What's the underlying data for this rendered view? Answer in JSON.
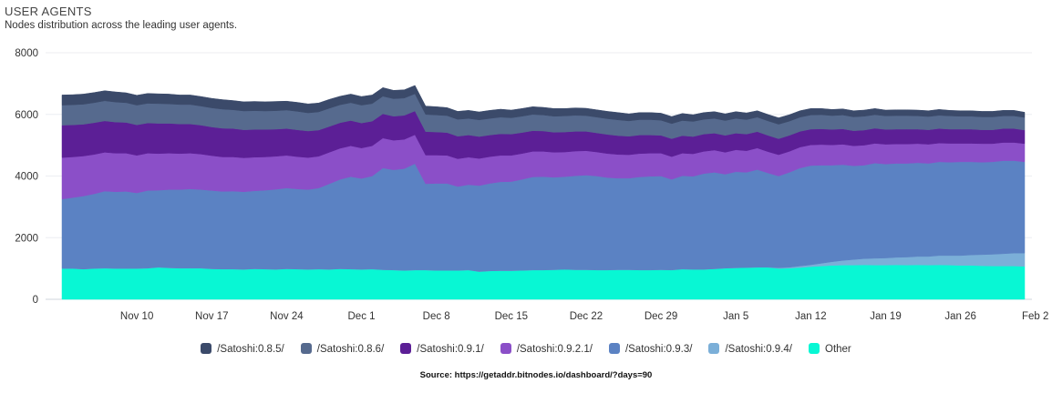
{
  "header": {
    "title": "USER AGENTS",
    "subtitle": "Nodes distribution across the leading user agents."
  },
  "source": "Source: https://getaddr.bitnodes.io/dashboard/?days=90",
  "chart_data": {
    "type": "area",
    "stacked": true,
    "title": "USER AGENTS",
    "subtitle": "Nodes distribution across the leading user agents.",
    "xlabel": "",
    "ylabel": "",
    "ylim": [
      0,
      8000
    ],
    "yticks": [
      0,
      2000,
      4000,
      6000,
      8000
    ],
    "x_start_day": 0,
    "x_end_day": 90,
    "x_tick_labels": [
      {
        "day": 7,
        "label": "Nov 10"
      },
      {
        "day": 14,
        "label": "Nov 17"
      },
      {
        "day": 21,
        "label": "Nov 24"
      },
      {
        "day": 28,
        "label": "Dec 1"
      },
      {
        "day": 35,
        "label": "Dec 8"
      },
      {
        "day": 42,
        "label": "Dec 15"
      },
      {
        "day": 49,
        "label": "Dec 22"
      },
      {
        "day": 56,
        "label": "Dec 29"
      },
      {
        "day": 63,
        "label": "Jan 5"
      },
      {
        "day": 70,
        "label": "Jan 12"
      },
      {
        "day": 77,
        "label": "Jan 19"
      },
      {
        "day": 84,
        "label": "Jan 26"
      },
      {
        "day": 91,
        "label": "Feb 2"
      }
    ],
    "x": [
      0,
      1,
      2,
      3,
      4,
      5,
      6,
      7,
      8,
      9,
      10,
      11,
      12,
      13,
      14,
      15,
      16,
      17,
      18,
      19,
      20,
      21,
      22,
      23,
      24,
      25,
      26,
      27,
      28,
      29,
      30,
      31,
      32,
      33,
      34,
      35,
      36,
      37,
      38,
      39,
      40,
      41,
      42,
      43,
      44,
      45,
      46,
      47,
      48,
      49,
      50,
      51,
      52,
      53,
      54,
      55,
      56,
      57,
      58,
      59,
      60,
      61,
      62,
      63,
      64,
      65,
      66,
      67,
      68,
      69,
      70,
      71,
      72,
      73,
      74,
      75,
      76,
      77,
      78,
      79,
      80,
      81,
      82,
      83,
      84,
      85,
      86,
      87,
      88,
      89,
      90
    ],
    "legend_position": "bottom",
    "series": [
      {
        "name": "Other",
        "color": "#08f7d4",
        "values": [
          1000,
          1000,
          980,
          1000,
          1010,
          1000,
          1000,
          1000,
          1010,
          1040,
          1020,
          1010,
          1010,
          1010,
          990,
          980,
          980,
          970,
          990,
          980,
          970,
          990,
          980,
          970,
          980,
          970,
          990,
          980,
          970,
          980,
          960,
          950,
          940,
          950,
          950,
          940,
          940,
          940,
          950,
          900,
          920,
          930,
          930,
          940,
          950,
          950,
          960,
          970,
          960,
          960,
          950,
          950,
          960,
          960,
          950,
          950,
          960,
          950,
          980,
          970,
          970,
          990,
          1010,
          1020,
          1030,
          1040,
          1040,
          1000,
          1010,
          1030,
          1060,
          1080,
          1100,
          1110,
          1110,
          1120,
          1110,
          1110,
          1120,
          1110,
          1120,
          1110,
          1120,
          1110,
          1100,
          1100,
          1090,
          1080,
          1080,
          1080,
          1070
        ]
      },
      {
        "name": "/Satoshi:0.9.4/",
        "color": "#7bafd8",
        "values": [
          0,
          0,
          0,
          0,
          0,
          0,
          0,
          0,
          0,
          0,
          0,
          0,
          0,
          0,
          0,
          0,
          0,
          0,
          0,
          0,
          0,
          0,
          0,
          0,
          0,
          0,
          0,
          0,
          0,
          0,
          0,
          0,
          0,
          0,
          0,
          0,
          0,
          0,
          0,
          0,
          0,
          0,
          0,
          0,
          0,
          0,
          0,
          0,
          0,
          0,
          0,
          0,
          0,
          0,
          0,
          0,
          0,
          0,
          0,
          0,
          0,
          0,
          0,
          0,
          0,
          0,
          0,
          20,
          30,
          50,
          60,
          90,
          120,
          150,
          180,
          200,
          220,
          230,
          240,
          260,
          270,
          280,
          300,
          310,
          320,
          340,
          360,
          380,
          400,
          420,
          430
        ]
      },
      {
        "name": "/Satoshi:0.9.3/",
        "color": "#5b82c3",
        "values": [
          2250,
          2300,
          2370,
          2420,
          2500,
          2490,
          2500,
          2450,
          2520,
          2500,
          2540,
          2550,
          2570,
          2550,
          2540,
          2520,
          2530,
          2520,
          2530,
          2560,
          2600,
          2620,
          2600,
          2590,
          2630,
          2780,
          2900,
          3000,
          2950,
          3020,
          3300,
          3250,
          3300,
          3450,
          2800,
          2820,
          2820,
          2720,
          2770,
          2790,
          2840,
          2880,
          2890,
          2950,
          3020,
          3030,
          3000,
          3010,
          3050,
          3070,
          3050,
          3000,
          2970,
          2970,
          3020,
          3040,
          3040,
          2940,
          3030,
          3020,
          3110,
          3130,
          3050,
          3120,
          3090,
          3170,
          3060,
          2980,
          3080,
          3180,
          3220,
          3180,
          3130,
          3110,
          3040,
          3030,
          3090,
          3050,
          3050,
          3040,
          3040,
          3020,
          3040,
          3030,
          3040,
          3020,
          3000,
          3000,
          3020,
          3000,
          2960
        ]
      },
      {
        "name": "/Satoshi:0.9.2.1/",
        "color": "#8b4fc8",
        "values": [
          1350,
          1320,
          1300,
          1280,
          1260,
          1250,
          1240,
          1220,
          1210,
          1190,
          1180,
          1170,
          1160,
          1150,
          1130,
          1120,
          1110,
          1100,
          1090,
          1080,
          1070,
          1060,
          1050,
          1040,
          1030,
          1020,
          1010,
          1000,
          990,
          980,
          970,
          960,
          950,
          940,
          930,
          920,
          910,
          900,
          890,
          880,
          870,
          860,
          850,
          840,
          830,
          820,
          810,
          800,
          800,
          790,
          780,
          780,
          770,
          760,
          760,
          750,
          740,
          740,
          730,
          730,
          720,
          720,
          710,
          710,
          700,
          700,
          690,
          690,
          680,
          680,
          670,
          670,
          660,
          660,
          650,
          650,
          640,
          640,
          630,
          630,
          620,
          620,
          610,
          610,
          600,
          600,
          600,
          590,
          590,
          590,
          590
        ]
      },
      {
        "name": "/Satoshi:0.9.1/",
        "color": "#5c1f96",
        "values": [
          1050,
          1040,
          1030,
          1030,
          1020,
          1010,
          1000,
          990,
          980,
          980,
          970,
          960,
          950,
          940,
          930,
          930,
          920,
          910,
          900,
          890,
          880,
          870,
          870,
          860,
          850,
          840,
          830,
          820,
          810,
          800,
          790,
          780,
          780,
          770,
          760,
          750,
          740,
          730,
          720,
          710,
          700,
          700,
          690,
          680,
          670,
          660,
          650,
          650,
          640,
          630,
          620,
          620,
          610,
          600,
          600,
          590,
          580,
          580,
          570,
          560,
          560,
          550,
          550,
          540,
          540,
          530,
          530,
          520,
          520,
          510,
          510,
          510,
          500,
          500,
          490,
          490,
          490,
          480,
          480,
          480,
          470,
          470,
          470,
          460,
          460,
          460,
          450,
          450,
          450,
          450,
          440
        ]
      },
      {
        "name": "/Satoshi:0.8.6/",
        "color": "#566a8e",
        "values": [
          650,
          650,
          650,
          650,
          650,
          650,
          640,
          640,
          640,
          640,
          630,
          630,
          630,
          620,
          620,
          620,
          610,
          610,
          610,
          600,
          600,
          600,
          600,
          590,
          590,
          590,
          580,
          580,
          580,
          570,
          570,
          570,
          560,
          560,
          560,
          550,
          550,
          550,
          540,
          540,
          540,
          540,
          530,
          530,
          530,
          520,
          520,
          520,
          520,
          510,
          510,
          510,
          510,
          500,
          500,
          500,
          490,
          490,
          490,
          490,
          480,
          480,
          480,
          480,
          470,
          470,
          470,
          470,
          460,
          460,
          460,
          460,
          450,
          450,
          450,
          450,
          440,
          440,
          440,
          440,
          430,
          430,
          430,
          430,
          420,
          420,
          420,
          420,
          410,
          410,
          410
        ]
      },
      {
        "name": "/Satoshi:0.8.5/",
        "color": "#3b4a6a",
        "values": [
          330,
          330,
          330,
          330,
          330,
          330,
          320,
          320,
          320,
          320,
          320,
          310,
          310,
          310,
          310,
          310,
          300,
          300,
          300,
          300,
          300,
          290,
          290,
          290,
          290,
          290,
          280,
          280,
          280,
          280,
          280,
          270,
          270,
          270,
          270,
          270,
          260,
          260,
          260,
          260,
          260,
          260,
          250,
          250,
          250,
          250,
          250,
          240,
          240,
          240,
          240,
          240,
          240,
          230,
          230,
          230,
          230,
          230,
          230,
          220,
          220,
          220,
          220,
          220,
          220,
          210,
          210,
          210,
          210,
          210,
          210,
          200,
          200,
          200,
          200,
          200,
          200,
          190,
          190,
          190,
          190,
          190,
          190,
          180,
          180,
          180,
          180,
          180,
          180,
          180,
          170
        ]
      }
    ]
  }
}
